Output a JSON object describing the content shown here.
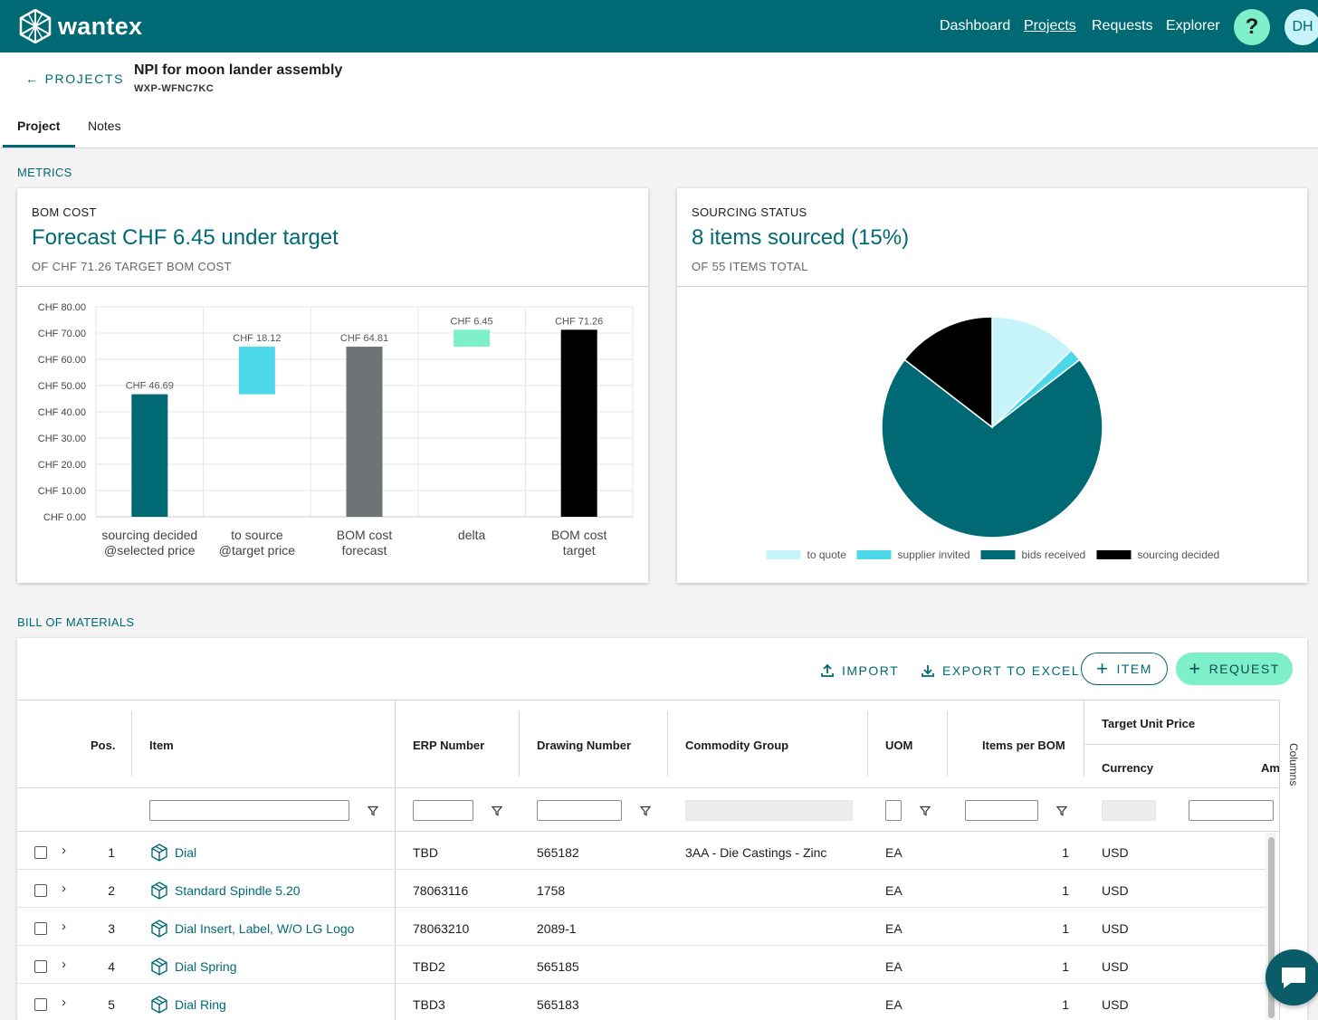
{
  "app": {
    "brand": "wantex",
    "nav": [
      "Dashboard",
      "Projects",
      "Requests",
      "Explorer"
    ],
    "active_nav": "Projects",
    "help_label": "?",
    "user_initials": "DH"
  },
  "header": {
    "back_label": "PROJECTS",
    "title": "NPI for moon lander assembly",
    "id": "WXP-WFNC7KC",
    "tabs": [
      "Project",
      "Notes"
    ],
    "active_tab": "Project"
  },
  "metrics": {
    "section_label": "METRICS",
    "bom_cost": {
      "kicker": "BOM COST",
      "headline": "Forecast CHF 6.45 under target",
      "sub": "OF CHF 71.26 TARGET BOM COST"
    },
    "sourcing": {
      "kicker": "SOURCING STATUS",
      "headline": "8 items sourced (15%)",
      "sub": "OF 55 ITEMS TOTAL"
    }
  },
  "chart_data": [
    {
      "type": "bar",
      "subtype": "waterfall",
      "categories": [
        "sourcing decided\n@selected price",
        "to source\n@target price",
        "BOM cost\nforecast",
        "delta",
        "BOM cost\ntarget"
      ],
      "bars": [
        {
          "base": 0,
          "top": 46.69,
          "label": "CHF 46.69",
          "color": "#006a74"
        },
        {
          "base": 46.69,
          "top": 64.81,
          "label": "CHF 18.12",
          "color": "#4dd8ea"
        },
        {
          "base": 0,
          "top": 64.81,
          "label": "CHF 64.81",
          "color": "#6e7476"
        },
        {
          "base": 64.81,
          "top": 71.26,
          "label": "CHF 6.45",
          "color": "#7df0c9"
        },
        {
          "base": 0,
          "top": 71.26,
          "label": "CHF 71.26",
          "color": "#000000"
        }
      ],
      "yticks": [
        "CHF 80.00",
        "CHF 70.00",
        "CHF 60.00",
        "CHF 50.00",
        "CHF 40.00",
        "CHF 30.00",
        "CHF 20.00",
        "CHF 10.00",
        "CHF 0.00"
      ],
      "ylim": [
        0,
        80
      ],
      "grid": true
    },
    {
      "type": "pie",
      "series": [
        {
          "name": "to quote",
          "value": 7,
          "color": "#c7f3fb"
        },
        {
          "name": "supplier invited",
          "value": 1,
          "color": "#4dd8ea"
        },
        {
          "name": "bids received",
          "value": 39,
          "color": "#006a74"
        },
        {
          "name": "sourcing decided",
          "value": 8,
          "color": "#000000"
        }
      ],
      "legend": "bottom"
    }
  ],
  "bom": {
    "section_label": "BILL OF MATERIALS",
    "import_label": "IMPORT",
    "export_label": "EXPORT TO EXCEL",
    "item_label": "ITEM",
    "request_label": "REQUEST",
    "columns_label": "Columns",
    "headers": {
      "pos": "Pos.",
      "item": "Item",
      "erp": "ERP Number",
      "drawing": "Drawing Number",
      "commodity": "Commodity Group",
      "uom": "UOM",
      "per_bom": "Items per BOM",
      "target_price": "Target Unit Price",
      "currency": "Currency",
      "amount": "Am"
    },
    "rows": [
      {
        "pos": "1",
        "item": "Dial",
        "erp": "TBD",
        "drawing": "565182",
        "commodity": "3AA - Die Castings - Zinc",
        "uom": "EA",
        "per_bom": "1",
        "currency": "USD"
      },
      {
        "pos": "2",
        "item": "Standard Spindle 5.20",
        "erp": "78063116",
        "drawing": "1758",
        "commodity": "",
        "uom": "EA",
        "per_bom": "1",
        "currency": "USD"
      },
      {
        "pos": "3",
        "item": "Dial Insert, Label, W/O LG Logo",
        "erp": "78063210",
        "drawing": "2089-1",
        "commodity": "",
        "uom": "EA",
        "per_bom": "1",
        "currency": "USD"
      },
      {
        "pos": "4",
        "item": "Dial Spring",
        "erp": "TBD2",
        "drawing": "565185",
        "commodity": "",
        "uom": "EA",
        "per_bom": "1",
        "currency": "USD"
      },
      {
        "pos": "5",
        "item": "Dial Ring",
        "erp": "TBD3",
        "drawing": "565183",
        "commodity": "",
        "uom": "EA",
        "per_bom": "1",
        "currency": "USD"
      }
    ]
  },
  "colors": {
    "brand": "#006a74",
    "accent": "#7df0c9",
    "light": "#c7f3fb"
  }
}
